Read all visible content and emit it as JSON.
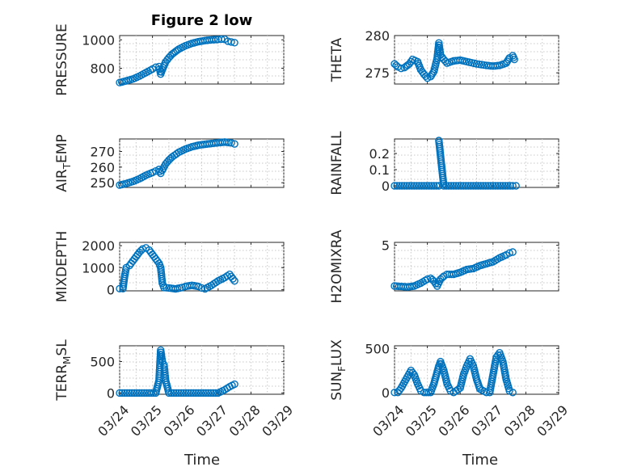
{
  "figure": {
    "title": "Figure 2 low",
    "xlabel": "Time",
    "marker_color": "#0072bd"
  },
  "chart_data": [
    {
      "type": "scatter",
      "title": "Figure 2 low",
      "ylabel": "PRESSURE",
      "xlim": [
        0,
        5
      ],
      "ylim": [
        690,
        1030
      ],
      "xticks": [
        "03/24",
        "03/25",
        "03/26",
        "03/27",
        "03/28",
        "03/29"
      ],
      "yticks": [
        800,
        1000
      ],
      "series": [
        {
          "points": [
            [
              0,
              700
            ],
            [
              0.2,
              712
            ],
            [
              0.4,
              725
            ],
            [
              0.6,
              745
            ],
            [
              0.8,
              770
            ],
            [
              1.0,
              795
            ],
            [
              1.1,
              808
            ],
            [
              1.2,
              812
            ],
            [
              1.25,
              760
            ],
            [
              1.3,
              790
            ],
            [
              1.4,
              845
            ],
            [
              1.5,
              875
            ],
            [
              1.6,
              900
            ],
            [
              1.8,
              935
            ],
            [
              2.0,
              958
            ],
            [
              2.2,
              975
            ],
            [
              2.4,
              987
            ],
            [
              2.6,
              995
            ],
            [
              2.8,
              1000
            ],
            [
              3.0,
              1003
            ],
            [
              3.1,
              1005
            ],
            [
              3.2,
              1004
            ],
            [
              3.3,
              990
            ],
            [
              3.4,
              985
            ],
            [
              3.5,
              980
            ]
          ]
        }
      ]
    },
    {
      "type": "scatter",
      "ylabel": "THETA",
      "xlim": [
        0,
        5
      ],
      "ylim": [
        273.5,
        280
      ],
      "xticks": [
        "03/24",
        "03/25",
        "03/26",
        "03/27",
        "03/28",
        "03/29"
      ],
      "yticks": [
        275,
        280
      ],
      "series": [
        {
          "points": [
            [
              0,
              276.2
            ],
            [
              0.1,
              275.8
            ],
            [
              0.2,
              275.6
            ],
            [
              0.3,
              275.7
            ],
            [
              0.45,
              276.2
            ],
            [
              0.55,
              276.8
            ],
            [
              0.7,
              276.5
            ],
            [
              0.8,
              275.4
            ],
            [
              0.9,
              274.8
            ],
            [
              1.0,
              274.3
            ],
            [
              1.1,
              274.5
            ],
            [
              1.2,
              275.2
            ],
            [
              1.3,
              277.0
            ],
            [
              1.35,
              279.0
            ],
            [
              1.4,
              277.4
            ],
            [
              1.5,
              276.8
            ],
            [
              1.6,
              276.3
            ],
            [
              1.8,
              276.6
            ],
            [
              2.0,
              276.7
            ],
            [
              2.2,
              276.5
            ],
            [
              2.5,
              276.2
            ],
            [
              2.8,
              276.0
            ],
            [
              3.0,
              275.9
            ],
            [
              3.2,
              276.0
            ],
            [
              3.4,
              276.3
            ],
            [
              3.5,
              277.0
            ],
            [
              3.6,
              277.3
            ],
            [
              3.65,
              276.8
            ]
          ]
        }
      ]
    },
    {
      "type": "scatter",
      "ylabel": "AIR_TEMP",
      "xlim": [
        0,
        5
      ],
      "ylim": [
        247,
        278
      ],
      "xticks": [
        "03/24",
        "03/25",
        "03/26",
        "03/27",
        "03/28",
        "03/29"
      ],
      "yticks": [
        250,
        260,
        270
      ],
      "series": [
        {
          "points": [
            [
              0,
              248.5
            ],
            [
              0.2,
              249.5
            ],
            [
              0.4,
              250.8
            ],
            [
              0.6,
              252.5
            ],
            [
              0.8,
              254.8
            ],
            [
              1.0,
              256.5
            ],
            [
              1.1,
              257.5
            ],
            [
              1.2,
              258.5
            ],
            [
              1.25,
              256.0
            ],
            [
              1.3,
              258.0
            ],
            [
              1.4,
              262.0
            ],
            [
              1.5,
              264.5
            ],
            [
              1.6,
              266.5
            ],
            [
              1.8,
              269.5
            ],
            [
              2.0,
              271.5
            ],
            [
              2.2,
              273.0
            ],
            [
              2.4,
              274.0
            ],
            [
              2.6,
              274.6
            ],
            [
              2.8,
              275.1
            ],
            [
              3.0,
              275.6
            ],
            [
              3.2,
              276.0
            ],
            [
              3.4,
              275.5
            ],
            [
              3.5,
              274.8
            ]
          ]
        }
      ]
    },
    {
      "type": "scatter",
      "ylabel": "RAINFALL",
      "xlim": [
        0,
        5
      ],
      "ylim": [
        -0.01,
        0.29
      ],
      "xticks": [
        "03/24",
        "03/25",
        "03/26",
        "03/27",
        "03/28",
        "03/29"
      ],
      "yticks": [
        0,
        0.1,
        0.2
      ],
      "series": [
        {
          "points": [
            [
              0,
              0
            ],
            [
              0.3,
              0
            ],
            [
              0.6,
              0
            ],
            [
              0.9,
              0
            ],
            [
              1.2,
              0
            ],
            [
              1.35,
              0
            ],
            [
              1.35,
              0.28
            ],
            [
              1.5,
              0
            ],
            [
              1.8,
              0
            ],
            [
              2.1,
              0
            ],
            [
              2.4,
              0
            ],
            [
              2.7,
              0
            ],
            [
              3.0,
              0
            ],
            [
              3.3,
              0
            ],
            [
              3.6,
              0
            ],
            [
              3.7,
              0
            ]
          ]
        }
      ]
    },
    {
      "type": "scatter",
      "ylabel": "MIXDEPTH",
      "xlim": [
        0,
        5
      ],
      "ylim": [
        -50,
        2150
      ],
      "xticks": [
        "03/24",
        "03/25",
        "03/26",
        "03/27",
        "03/28",
        "03/29"
      ],
      "yticks": [
        0,
        1000,
        2000
      ],
      "series": [
        {
          "points": [
            [
              0,
              50
            ],
            [
              0.1,
              50
            ],
            [
              0.15,
              600
            ],
            [
              0.2,
              1000
            ],
            [
              0.3,
              1100
            ],
            [
              0.4,
              1300
            ],
            [
              0.5,
              1500
            ],
            [
              0.6,
              1700
            ],
            [
              0.7,
              1850
            ],
            [
              0.8,
              1900
            ],
            [
              0.9,
              1800
            ],
            [
              1.0,
              1600
            ],
            [
              1.1,
              1400
            ],
            [
              1.2,
              1200
            ],
            [
              1.25,
              1000
            ],
            [
              1.3,
              300
            ],
            [
              1.35,
              100
            ],
            [
              1.5,
              80
            ],
            [
              1.7,
              40
            ],
            [
              1.9,
              100
            ],
            [
              2.0,
              150
            ],
            [
              2.2,
              200
            ],
            [
              2.4,
              150
            ],
            [
              2.5,
              80
            ],
            [
              2.6,
              40
            ],
            [
              2.8,
              200
            ],
            [
              3.0,
              400
            ],
            [
              3.2,
              550
            ],
            [
              3.35,
              700
            ],
            [
              3.4,
              600
            ],
            [
              3.5,
              400
            ]
          ]
        }
      ]
    },
    {
      "type": "scatter",
      "ylabel": "H2OMIXRA",
      "xlim": [
        0,
        5
      ],
      "ylim": [
        0.3,
        5.3
      ],
      "xticks": [
        "03/24",
        "03/25",
        "03/26",
        "03/27",
        "03/28",
        "03/29"
      ],
      "yticks": [
        5
      ],
      "series": [
        {
          "points": [
            [
              0,
              0.8
            ],
            [
              0.2,
              0.75
            ],
            [
              0.4,
              0.7
            ],
            [
              0.6,
              0.8
            ],
            [
              0.8,
              1.1
            ],
            [
              1.0,
              1.5
            ],
            [
              1.1,
              1.6
            ],
            [
              1.2,
              1.3
            ],
            [
              1.3,
              0.8
            ],
            [
              1.4,
              1.5
            ],
            [
              1.5,
              1.8
            ],
            [
              1.6,
              2.0
            ],
            [
              1.8,
              2.0
            ],
            [
              2.0,
              2.2
            ],
            [
              2.2,
              2.5
            ],
            [
              2.4,
              2.6
            ],
            [
              2.6,
              2.9
            ],
            [
              2.8,
              3.1
            ],
            [
              3.0,
              3.3
            ],
            [
              3.2,
              3.7
            ],
            [
              3.4,
              4.0
            ],
            [
              3.5,
              4.2
            ],
            [
              3.6,
              4.3
            ]
          ]
        }
      ]
    },
    {
      "type": "scatter",
      "ylabel": "TERR_MSL",
      "xlim": [
        0,
        5
      ],
      "ylim": [
        -20,
        750
      ],
      "xticks": [
        "03/24",
        "03/25",
        "03/26",
        "03/27",
        "03/28",
        "03/29"
      ],
      "yticks": [
        0,
        500
      ],
      "series": [
        {
          "points": [
            [
              0,
              0
            ],
            [
              0.3,
              0
            ],
            [
              0.6,
              0
            ],
            [
              0.9,
              0
            ],
            [
              1.1,
              0
            ],
            [
              1.2,
              200
            ],
            [
              1.25,
              680
            ],
            [
              1.3,
              500
            ],
            [
              1.35,
              450
            ],
            [
              1.4,
              200
            ],
            [
              1.5,
              0
            ],
            [
              1.8,
              0
            ],
            [
              2.1,
              0
            ],
            [
              2.4,
              0
            ],
            [
              2.7,
              0
            ],
            [
              3.0,
              0
            ],
            [
              3.2,
              50
            ],
            [
              3.35,
              100
            ],
            [
              3.5,
              140
            ]
          ]
        }
      ]
    },
    {
      "type": "scatter",
      "ylabel": "SUN_FLUX",
      "xlim": [
        0,
        5
      ],
      "ylim": [
        -20,
        530
      ],
      "xticks": [
        "03/24",
        "03/25",
        "03/26",
        "03/27",
        "03/28",
        "03/29"
      ],
      "yticks": [
        0,
        500
      ],
      "series": [
        {
          "points": [
            [
              0,
              0
            ],
            [
              0.1,
              0
            ],
            [
              0.2,
              50
            ],
            [
              0.35,
              150
            ],
            [
              0.5,
              250
            ],
            [
              0.6,
              200
            ],
            [
              0.7,
              100
            ],
            [
              0.8,
              20
            ],
            [
              0.9,
              0
            ],
            [
              1.1,
              0
            ],
            [
              1.2,
              100
            ],
            [
              1.35,
              300
            ],
            [
              1.4,
              350
            ],
            [
              1.5,
              250
            ],
            [
              1.6,
              100
            ],
            [
              1.7,
              20
            ],
            [
              1.8,
              0
            ],
            [
              2.0,
              50
            ],
            [
              2.1,
              200
            ],
            [
              2.2,
              300
            ],
            [
              2.3,
              380
            ],
            [
              2.4,
              300
            ],
            [
              2.5,
              150
            ],
            [
              2.6,
              40
            ],
            [
              2.8,
              0
            ],
            [
              2.9,
              0
            ],
            [
              3.0,
              200
            ],
            [
              3.1,
              400
            ],
            [
              3.2,
              450
            ],
            [
              3.3,
              350
            ],
            [
              3.4,
              150
            ],
            [
              3.5,
              20
            ],
            [
              3.6,
              0
            ]
          ]
        }
      ]
    }
  ]
}
